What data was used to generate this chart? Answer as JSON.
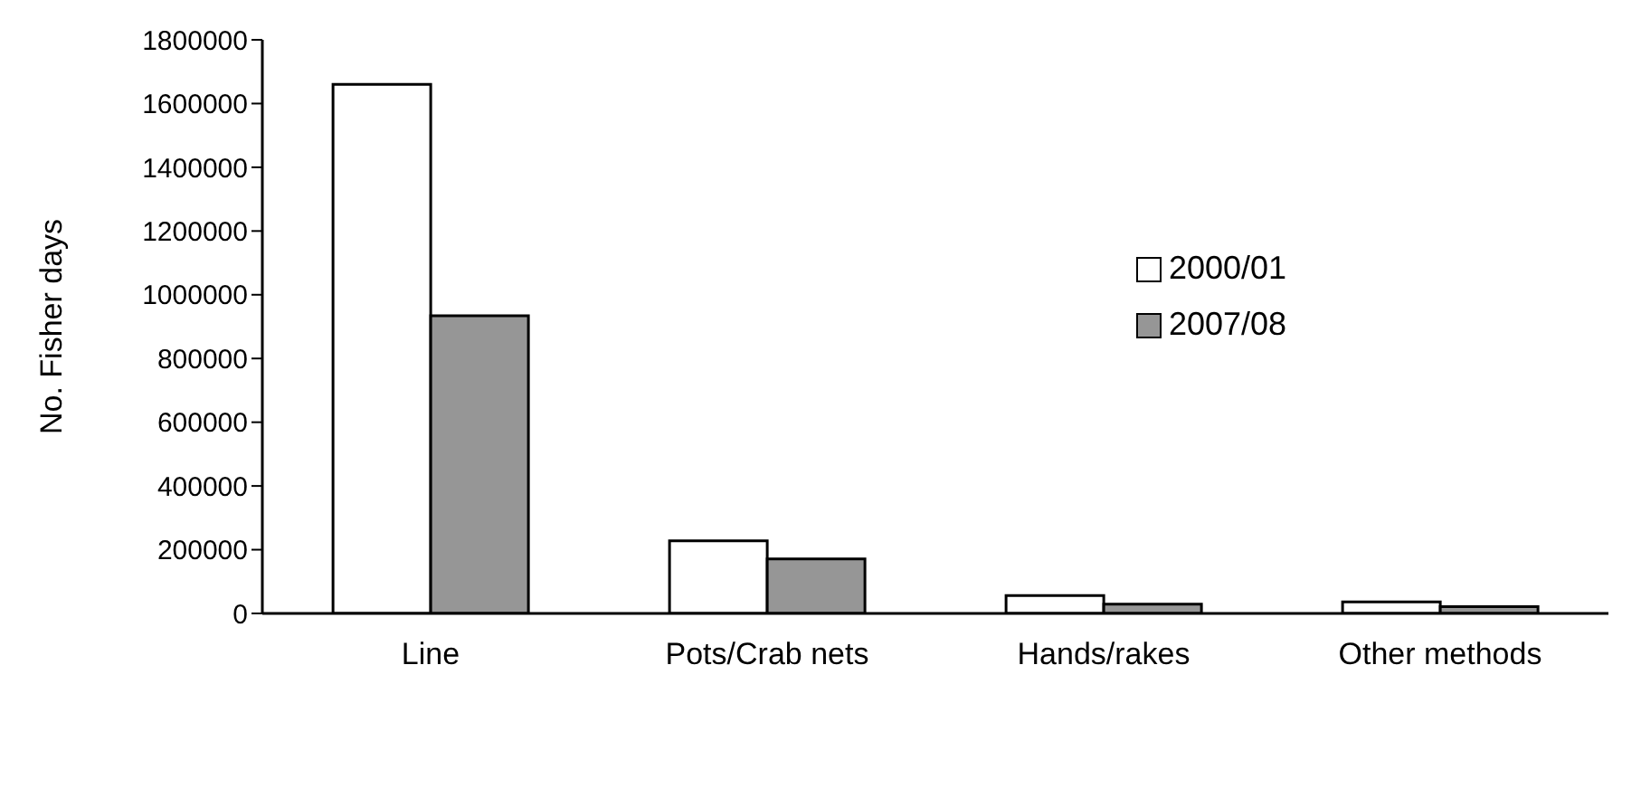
{
  "chart_data": {
    "type": "bar",
    "ylabel": "No. Fisher days",
    "categories": [
      "Line",
      "Pots/Crab nets",
      "Hands/rakes",
      "Other methods"
    ],
    "series": [
      {
        "name": "2000/01",
        "color": "#ffffff",
        "values": [
          1660000,
          228000,
          56000,
          36000
        ]
      },
      {
        "name": "2007/08",
        "color": "#969696",
        "values": [
          934000,
          171000,
          29000,
          21000
        ]
      }
    ],
    "ylim": [
      0,
      1800000
    ],
    "yticks": [
      0,
      200000,
      400000,
      600000,
      800000,
      1000000,
      1200000,
      1400000,
      1600000,
      1800000
    ],
    "grid": false,
    "legend": "top right"
  }
}
